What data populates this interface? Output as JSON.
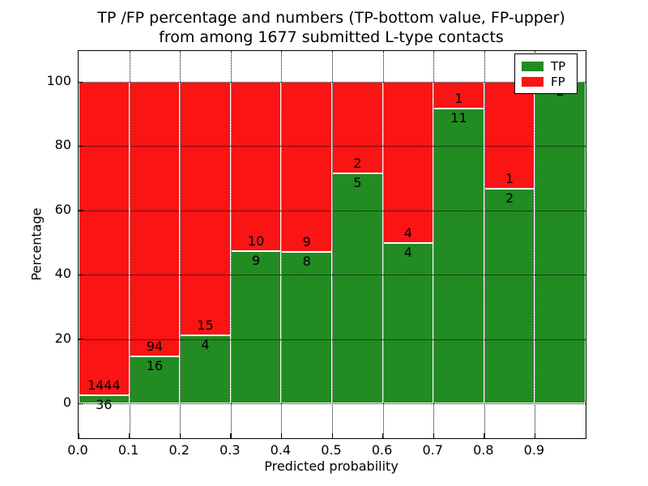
{
  "title": {
    "line1": "TP /FP percentage and numbers (TP-bottom value, FP-upper)",
    "line2": "from among 1677 submitted L-type contacts"
  },
  "axes": {
    "xlabel": "Predicted probability",
    "ylabel": "Percentage",
    "x_ticks": [
      "0.0",
      "0.1",
      "0.2",
      "0.3",
      "0.4",
      "0.5",
      "0.6",
      "0.7",
      "0.8",
      "0.9"
    ],
    "y_ticks": [
      "0",
      "20",
      "40",
      "60",
      "80",
      "100"
    ]
  },
  "legend": {
    "items": [
      {
        "label": "TP",
        "color": "#228b22"
      },
      {
        "label": "FP",
        "color": "#fa1414"
      }
    ]
  },
  "colors": {
    "tp": "#228b22",
    "fp": "#fa1414",
    "bar_edge": "#ffffff",
    "grid": "#000000",
    "text": "#000000"
  },
  "chart_data": {
    "type": "bar",
    "stacked": true,
    "normalized_to_percent": true,
    "title": "TP /FP percentage and numbers (TP-bottom value, FP-upper) from among 1677 submitted L-type contacts",
    "xlabel": "Predicted probability",
    "ylabel": "Percentage",
    "xlim": [
      0.0,
      1.0
    ],
    "ylim": [
      -11,
      110
    ],
    "grid": true,
    "legend_position": "upper right",
    "bin_width": 0.1,
    "bin_starts": [
      0.0,
      0.1,
      0.2,
      0.3,
      0.4,
      0.5,
      0.6,
      0.7,
      0.8,
      0.9
    ],
    "series": [
      {
        "name": "TP",
        "color": "#228b22",
        "counts": [
          36,
          16,
          4,
          9,
          8,
          5,
          4,
          11,
          2,
          2
        ]
      },
      {
        "name": "FP",
        "color": "#fa1414",
        "counts": [
          1444,
          94,
          15,
          10,
          9,
          2,
          4,
          1,
          1,
          0
        ]
      }
    ],
    "tp_percent": [
      2.43,
      14.55,
      21.05,
      47.37,
      47.06,
      71.43,
      50.0,
      91.67,
      66.67,
      100.0
    ],
    "total_contacts": 1677
  }
}
